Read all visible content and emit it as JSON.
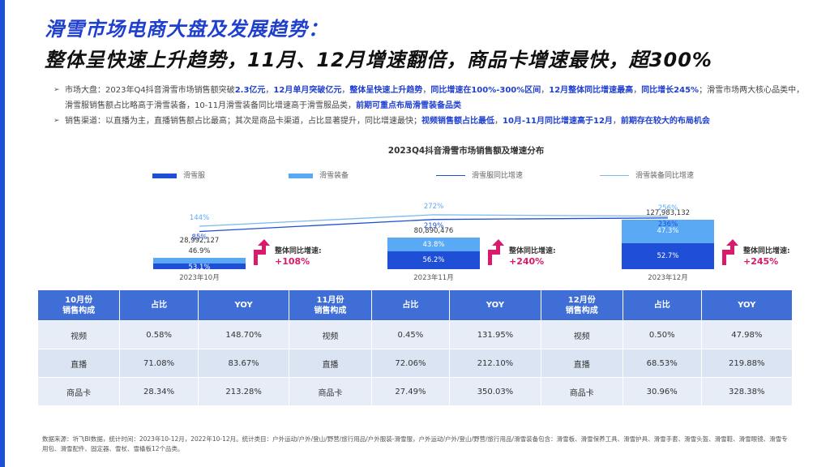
{
  "header": {
    "title_line1": "滑雪市场电商大盘及发展趋势：",
    "title_line2": "整体呈快速上升趋势，11月、12月增速翻倍，商品卡增速最快，超300%"
  },
  "bullets": [
    {
      "parts": [
        {
          "t": "市场大盘：2023年Q4抖音滑雪市场销售额突破",
          "h": false
        },
        {
          "t": "2.3亿元",
          "h": true
        },
        {
          "t": "，",
          "h": false
        },
        {
          "t": "12月单月突破亿元",
          "h": true
        },
        {
          "t": "，",
          "h": false
        },
        {
          "t": "整体呈快速上升趋势",
          "h": true
        },
        {
          "t": "，",
          "h": false
        },
        {
          "t": "同比增速在100%-300%区间",
          "h": true
        },
        {
          "t": "，",
          "h": false
        },
        {
          "t": "12月整体同比增速最高",
          "h": true
        },
        {
          "t": "，",
          "h": false
        },
        {
          "t": "同比增长245%",
          "h": true
        },
        {
          "t": "；滑雪市场两大核心品类中，滑雪服销售额占比略高于滑雪装备，10-11月滑雪装备同比增速高于滑雪服品类，",
          "h": false
        },
        {
          "t": "前期可重点布局滑雪装备品类",
          "h": true
        }
      ]
    },
    {
      "parts": [
        {
          "t": "销售渠道：以直播为主，直播销售额占比最高；其次是商品卡渠道，占比显著提升，同比增速最快；",
          "h": false
        },
        {
          "t": "视频销售额占比最低",
          "h": true
        },
        {
          "t": "，",
          "h": false
        },
        {
          "t": "10月-11月同比增速高于12月",
          "h": true
        },
        {
          "t": "，",
          "h": false
        },
        {
          "t": "前期存在较大的布局机会",
          "h": true
        }
      ]
    }
  ],
  "chart_data": {
    "type": "bar",
    "title": "2023Q4抖音滑雪市场销售额及增速分布",
    "categories": [
      "2023年10月",
      "2023年11月",
      "2023年12月"
    ],
    "totals": [
      "28,992,127",
      "80,890,476",
      "127,983,132"
    ],
    "total_values": [
      28992127,
      80890476,
      127983132
    ],
    "series": [
      {
        "name": "滑雪服",
        "shares": [
          53.1,
          56.2,
          52.7
        ],
        "labels": [
          "53.1%",
          "56.2%",
          "52.7%"
        ],
        "color": "#1f4fd6"
      },
      {
        "name": "滑雪装备",
        "shares": [
          46.9,
          43.8,
          47.3
        ],
        "labels": [
          "46.9%",
          "43.8%",
          "47.3%"
        ],
        "color": "#5aa9f5"
      }
    ],
    "lines": [
      {
        "name": "滑雪服同比增速",
        "values": [
          85,
          219,
          236
        ],
        "labels": [
          "85%",
          "219%",
          "236%"
        ],
        "color": "#1f4fd6"
      },
      {
        "name": "滑雪装备同比增速",
        "values": [
          144,
          272,
          256
        ],
        "labels": [
          "144%",
          "272%",
          "256%"
        ],
        "color": "#7db8f0"
      }
    ],
    "overall_growth_label": "整体同比增速:",
    "overall_growth": [
      "+108%",
      "+240%",
      "+245%"
    ],
    "overall_growth_values": [
      108,
      240,
      245
    ],
    "growth_color": "#d81b6b"
  },
  "table": {
    "groups": [
      {
        "head": [
          "10月份",
          "销售构成"
        ],
        "share_label": "占比",
        "yoy_label": "YOY"
      },
      {
        "head": [
          "11月份",
          "销售构成"
        ],
        "share_label": "占比",
        "yoy_label": "YOY"
      },
      {
        "head": [
          "12月份",
          "销售构成"
        ],
        "share_label": "占比",
        "yoy_label": "YOY"
      }
    ],
    "rows": [
      [
        "视频",
        "0.58%",
        "148.70%",
        "视频",
        "0.45%",
        "131.95%",
        "视频",
        "0.50%",
        "47.98%"
      ],
      [
        "直播",
        "71.08%",
        "83.67%",
        "直播",
        "72.06%",
        "212.10%",
        "直播",
        "68.53%",
        "219.88%"
      ],
      [
        "商品卡",
        "28.34%",
        "213.28%",
        "商品卡",
        "27.49%",
        "350.03%",
        "商品卡",
        "30.96%",
        "328.38%"
      ]
    ]
  },
  "footnote": "数据来源：圻飞BI数据，统计时间：2023年10-12月，2022年10-12月。统计类目：户外运动/户外/登山/野营/旅行用品/户外服装-滑雪服，户外运动/户外/登山/野营/旅行用品/滑雪装备包含：滑雪板、滑雪保养工具、滑雪护具、滑雪手套、滑雪头盔、滑雪鞋、滑雪眼镜、滑雪专用包、滑雪配件、固定器、雪杖、雪橇板12个品类。"
}
